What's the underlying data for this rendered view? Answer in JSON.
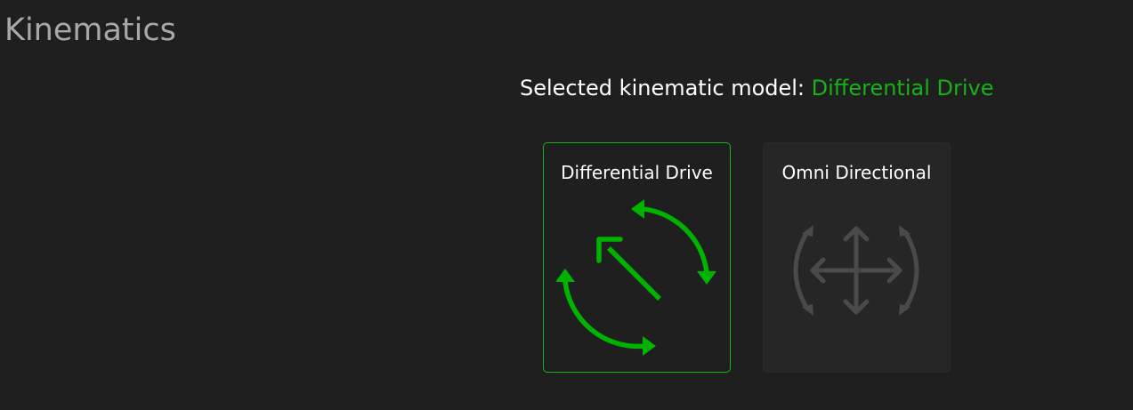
{
  "page": {
    "title": "Kinematics"
  },
  "selection": {
    "label": "Selected kinematic model: ",
    "value": "Differential Drive"
  },
  "cards": [
    {
      "id": "differential-drive",
      "label": "Differential Drive",
      "icon": "rotate-arrows-icon",
      "selected": true
    },
    {
      "id": "omni-directional",
      "label": "Omni Directional",
      "icon": "omni-move-icon",
      "selected": false
    }
  ],
  "colors": {
    "background": "#1f1f1f",
    "title": "#a8a8a8",
    "accent": "#19b019",
    "inactive_icon": "#4a4a4a",
    "inactive_card": "#262626"
  }
}
